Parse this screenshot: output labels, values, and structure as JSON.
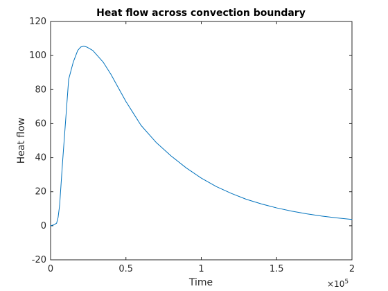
{
  "chart_data": {
    "type": "line",
    "title": "Heat flow across convection boundary",
    "xlabel": "Time",
    "ylabel": "Heat flow",
    "x_exponent_label": {
      "base": "×10",
      "exponent": "5"
    },
    "x_ticks": [
      {
        "value": 0,
        "label": "0"
      },
      {
        "value": 0.5,
        "label": "0.5"
      },
      {
        "value": 1,
        "label": "1"
      },
      {
        "value": 1.5,
        "label": "1.5"
      },
      {
        "value": 2,
        "label": "2"
      }
    ],
    "y_ticks": [
      {
        "value": -20,
        "label": "-20"
      },
      {
        "value": 0,
        "label": "0"
      },
      {
        "value": 20,
        "label": "20"
      },
      {
        "value": 40,
        "label": "40"
      },
      {
        "value": 60,
        "label": "60"
      },
      {
        "value": 80,
        "label": "80"
      },
      {
        "value": 100,
        "label": "100"
      },
      {
        "value": 120,
        "label": "120"
      }
    ],
    "xlim": [
      0,
      2
    ],
    "ylim": [
      -20,
      120
    ],
    "grid": false,
    "series": [
      {
        "color": "#0072BD",
        "x": [
          0,
          0.02,
          0.04,
          0.05,
          0.06,
          0.08,
          0.1,
          0.12,
          0.15,
          0.18,
          0.2,
          0.22,
          0.24,
          0.26,
          0.28,
          0.3,
          0.35,
          0.4,
          0.45,
          0.5,
          0.55,
          0.6,
          0.7,
          0.8,
          0.9,
          1.0,
          1.1,
          1.2,
          1.3,
          1.4,
          1.5,
          1.6,
          1.7,
          1.8,
          1.9,
          2.0
        ],
        "y": [
          0,
          0.5,
          1.5,
          5,
          12,
          38,
          62,
          86,
          96,
          103,
          105,
          105.5,
          105,
          104,
          103,
          101,
          96,
          89,
          81,
          73,
          66,
          59,
          49,
          41,
          34,
          28,
          23,
          19,
          15.5,
          12.8,
          10.5,
          8.6,
          7,
          5.7,
          4.6,
          3.7
        ]
      }
    ]
  }
}
